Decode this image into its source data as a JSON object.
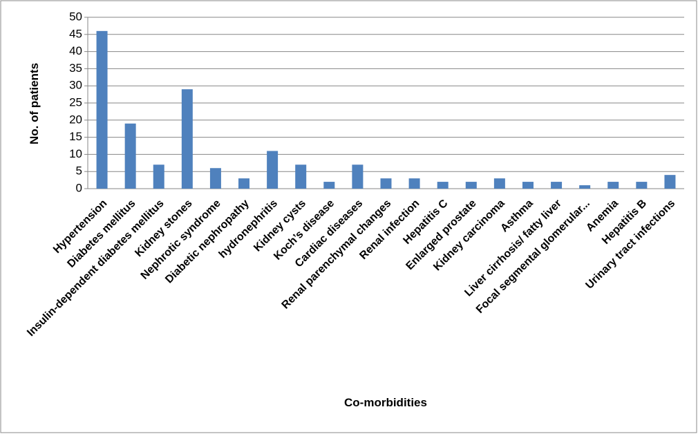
{
  "chart_data": {
    "type": "bar",
    "x_label": "Co-morbidities",
    "y_label": "No. of patients",
    "categories": [
      "Hypertension",
      "Diabetes mellitus",
      "Insulin-dependent diabetes mellitus",
      "Kidney stones",
      "Nephrotic syndrome",
      "Diabetic nephropathy",
      "hydronephritis",
      "Kidney cysts",
      "Koch’s disease",
      "Cardiac diseases",
      "Renal parenchymal changes",
      "Renal infection",
      "Hepatitis C",
      "Enlarged prostate",
      "Kidney carcinoma",
      "Asthma",
      "Liver cirrhosis/ fatty liver",
      "Focal segmental glomerular...",
      "Anemia",
      "Hepatitis B",
      "Urinary tract infections"
    ],
    "values": [
      46,
      19,
      7,
      29,
      6,
      3,
      11,
      7,
      2,
      7,
      3,
      3,
      2,
      2,
      3,
      2,
      2,
      1,
      2,
      2,
      4
    ],
    "color": "#4f81bd",
    "ylim": [
      0,
      50
    ],
    "yticks": [
      0,
      5,
      10,
      15,
      20,
      25,
      30,
      35,
      40,
      45,
      50
    ],
    "grid": true
  }
}
